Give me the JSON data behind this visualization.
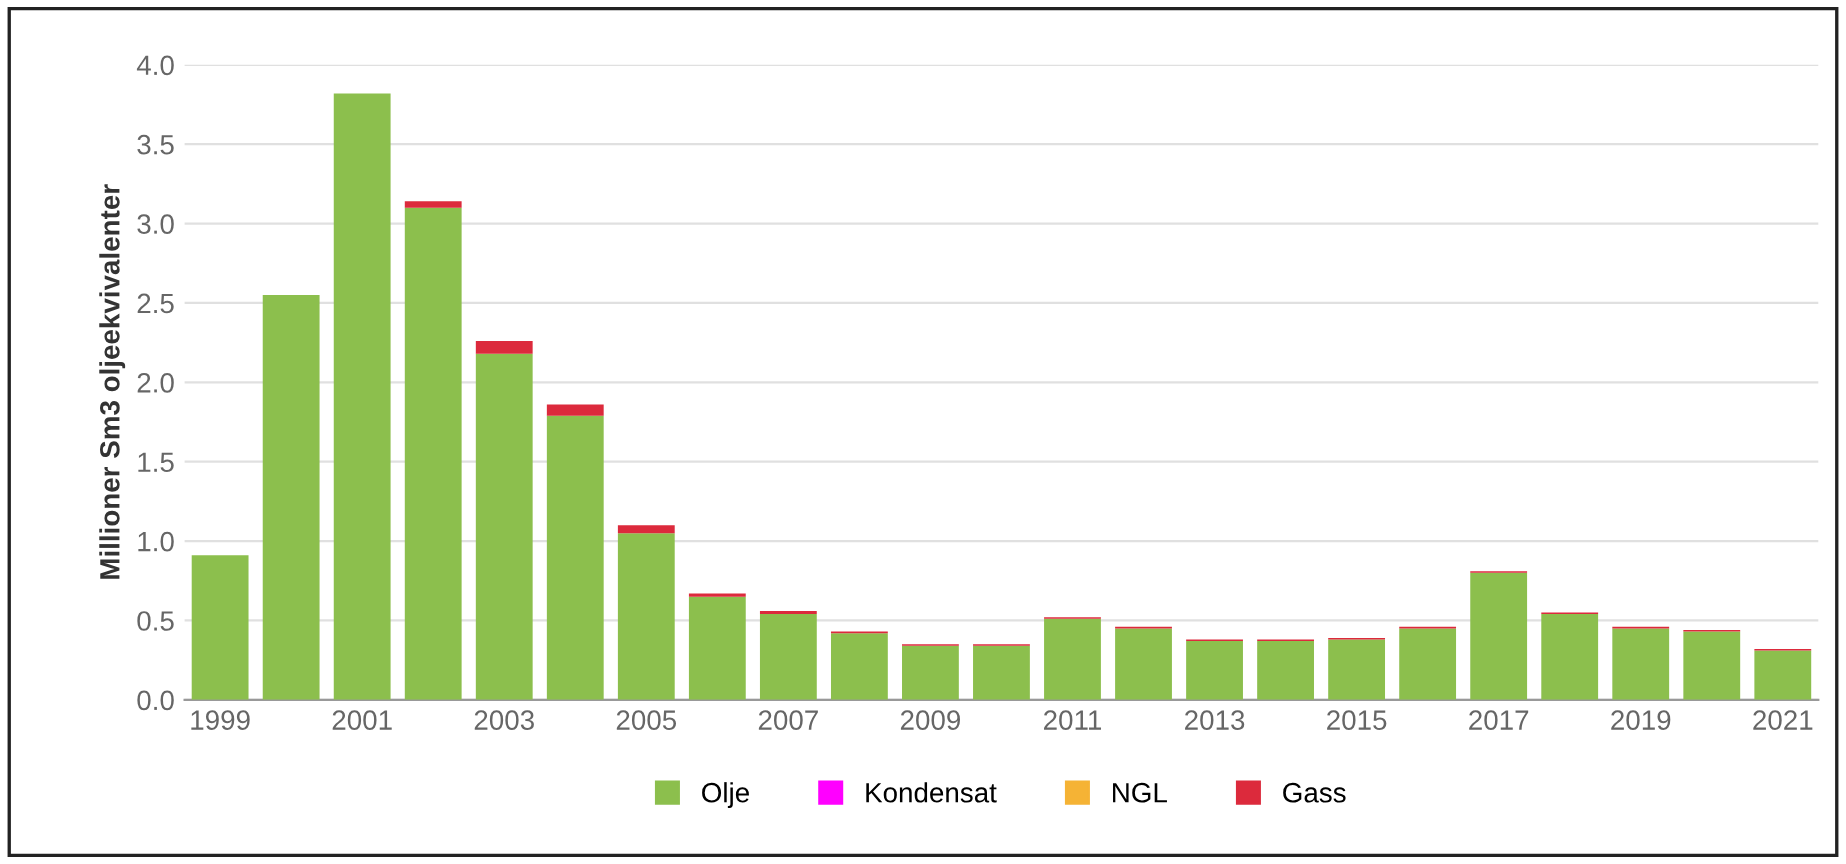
{
  "chart_data": {
    "type": "bar",
    "stacked": true,
    "ylabel": "Millioner Sm3 oljeekvivalenter",
    "categories": [
      "1999",
      null,
      "2001",
      null,
      "2003",
      null,
      "2005",
      null,
      "2007",
      null,
      "2009",
      null,
      "2011",
      null,
      "2013",
      null,
      "2015",
      null,
      "2017",
      null,
      "2019",
      null,
      "2021"
    ],
    "series": [
      {
        "name": "Olje",
        "color": "#8cbf4d",
        "values": [
          0.91,
          2.55,
          3.82,
          3.1,
          2.18,
          1.79,
          1.05,
          0.65,
          0.54,
          0.42,
          0.34,
          0.34,
          0.51,
          0.45,
          0.37,
          0.37,
          0.38,
          0.45,
          0.8,
          0.54,
          0.45,
          0.43,
          0.31
        ]
      },
      {
        "name": "Kondensat",
        "color": "#ff00ff",
        "values": [
          0,
          0,
          0,
          0,
          0,
          0,
          0,
          0,
          0,
          0,
          0,
          0,
          0,
          0,
          0,
          0,
          0,
          0,
          0,
          0,
          0,
          0,
          0
        ]
      },
      {
        "name": "NGL",
        "color": "#f5b335",
        "values": [
          0,
          0,
          0,
          0,
          0,
          0,
          0,
          0,
          0,
          0,
          0,
          0,
          0,
          0,
          0,
          0,
          0,
          0,
          0,
          0,
          0,
          0,
          0
        ]
      },
      {
        "name": "Gass",
        "color": "#dc2a3c",
        "values": [
          0,
          0,
          0,
          0.04,
          0.08,
          0.07,
          0.05,
          0.02,
          0.02,
          0.01,
          0.01,
          0.01,
          0.01,
          0.01,
          0.01,
          0.01,
          0.01,
          0.01,
          0.01,
          0.01,
          0.01,
          0.01,
          0.01
        ]
      }
    ],
    "ylim": [
      0,
      4.0
    ],
    "yticks": [
      {
        "value": 0,
        "label": "0.0"
      },
      {
        "value": 0.5,
        "label": "0.5"
      },
      {
        "value": 1,
        "label": "1.0"
      },
      {
        "value": 1.5,
        "label": "1.5"
      },
      {
        "value": 2,
        "label": "2.0"
      },
      {
        "value": 2.5,
        "label": "2.5"
      },
      {
        "value": 3,
        "label": "3.0"
      },
      {
        "value": 3.5,
        "label": "3.5"
      },
      {
        "value": 4,
        "label": "4.0"
      }
    ],
    "grid": "y",
    "legend": "bottom"
  }
}
